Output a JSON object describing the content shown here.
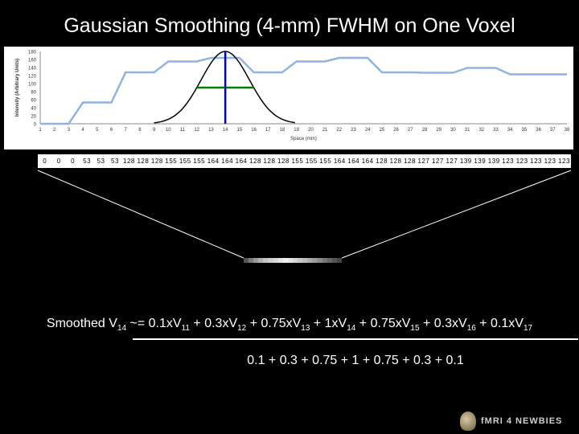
{
  "title": "Gaussian Smoothing (4-mm) FWHM on One Voxel",
  "chart_data": {
    "type": "line",
    "ylabel": "Intensity (Arbitrary Units)",
    "xlabel": "Space (mm)",
    "ylim": [
      0,
      180
    ],
    "yticks": [
      "0",
      "20",
      "40",
      "60",
      "80",
      "100",
      "120",
      "140",
      "160",
      "180"
    ],
    "x": [
      1,
      2,
      3,
      4,
      5,
      6,
      7,
      8,
      9,
      10,
      11,
      12,
      13,
      14,
      15,
      16,
      17,
      18,
      19,
      20,
      21,
      22,
      23,
      24,
      25,
      26,
      27,
      28,
      29,
      30,
      31,
      32,
      33,
      34,
      35,
      36,
      37,
      38
    ],
    "series": [
      {
        "color": "#8eb4e3",
        "values": [
          0,
          0,
          0,
          53,
          53,
          53,
          128,
          128,
          128,
          155,
          155,
          155,
          164,
          164,
          164,
          128,
          128,
          128,
          155,
          155,
          155,
          164,
          164,
          164,
          128,
          128,
          128,
          127,
          127,
          127,
          139,
          139,
          139,
          123,
          123,
          123,
          123,
          123
        ]
      }
    ],
    "gaussian": {
      "color": "#000000",
      "center": 14,
      "peak": 180,
      "fwhm": 4
    },
    "fwhm_marker": {
      "color": "#008000",
      "center": 14,
      "level": 90,
      "fwhm": 4
    },
    "center_marker": {
      "color": "#0000cc",
      "x": 14
    },
    "grid": false
  },
  "voxel_values": [
    "0",
    "0",
    "0",
    "53",
    "53",
    "53",
    "128",
    "128",
    "128",
    "155",
    "155",
    "155",
    "164",
    "164",
    "164",
    "128",
    "128",
    "128",
    "155",
    "155",
    "155",
    "164",
    "164",
    "164",
    "128",
    "128",
    "128",
    "127",
    "127",
    "127",
    "139",
    "139",
    "139",
    "123",
    "123",
    "123",
    "123",
    "123"
  ],
  "smoothed_grays": [
    "#555555",
    "#7a7a7a",
    "#9a9a9a",
    "#b0b0b0",
    "#c4c4c4",
    "#cfcfcf",
    "#d8d8d8",
    "#e4e4e4",
    "#f0f0f0",
    "#e4e4e4",
    "#d6d6d6",
    "#c9c9c9",
    "#bdbdbd",
    "#aeaeae",
    "#9e9e9e",
    "#8a8a8a",
    "#777777",
    "#656565",
    "#555555",
    "#444444"
  ],
  "formula": {
    "smoothed": "Smoothed V",
    "s0": "14",
    "t1": " ~= 0.1xV",
    "s1": "11",
    "t2": " + 0.3xV",
    "s2": "12",
    "t3": " + 0.75xV",
    "s3": "13",
    "t4": " + 1xV",
    "s4": "14",
    "t5": " + 0.75xV",
    "s5": "15",
    "t6": " + 0.3xV",
    "s6": "16",
    "t7": " + 0.1xV",
    "s7": "17"
  },
  "denominator": "0.1 + 0.3 + 0.75 + 1 + 0.75 + 0.3 + 0.1",
  "logo": {
    "text": "fMRI 4 NEWBIES"
  }
}
